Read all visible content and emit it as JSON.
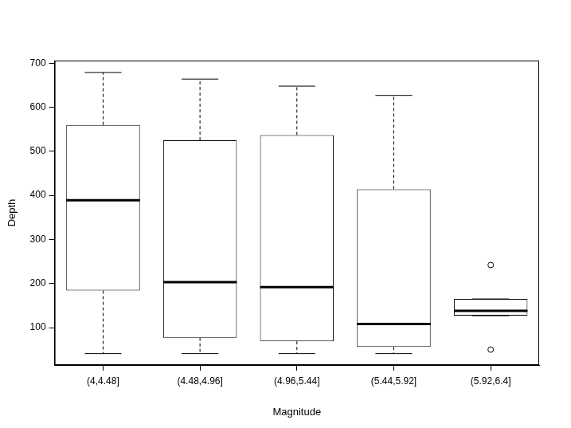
{
  "chart_data": {
    "type": "boxplot",
    "x_label": "Magnitude",
    "y_label": "Depth",
    "categories": [
      "(4,4.48]",
      "(4.48,4.96]",
      "(4.96,5.44]",
      "(5.44,5.92]",
      "(5.92,6.4]"
    ],
    "values": [
      {
        "min": 41,
        "q1": 184,
        "median": 389,
        "q3": 560,
        "max": 679,
        "outliers": []
      },
      {
        "min": 41,
        "q1": 77,
        "median": 203,
        "q3": 525,
        "max": 664,
        "outliers": []
      },
      {
        "min": 41,
        "q1": 69,
        "median": 192,
        "q3": 537,
        "max": 648,
        "outliers": []
      },
      {
        "min": 41,
        "q1": 56,
        "median": 108,
        "q3": 414,
        "max": 627,
        "outliers": []
      },
      {
        "min": 127,
        "q1": 127,
        "median": 138,
        "q3": 165,
        "max": 165,
        "outliers": [
          242,
          50
        ]
      }
    ],
    "color": "#000000",
    "ylim": [
      15,
      706
    ],
    "yticks": [
      100,
      200,
      300,
      400,
      500,
      600,
      700
    ],
    "grid": false
  }
}
